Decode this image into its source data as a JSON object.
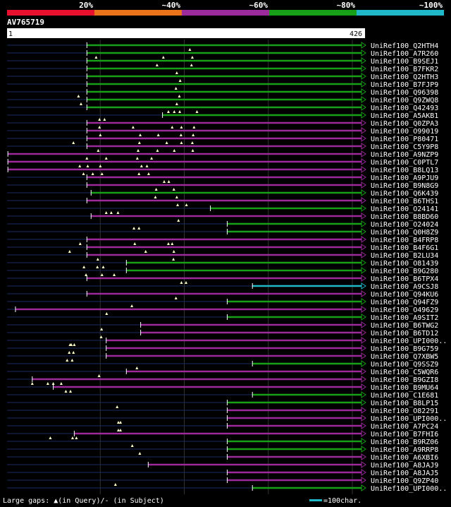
{
  "legend": {
    "segments": [
      {
        "color": "#e8112d",
        "label": "20%"
      },
      {
        "color": "#e8731a",
        "label": "~40%"
      },
      {
        "color": "#9b2a9b",
        "label": "~60%"
      },
      {
        "color": "#17a017",
        "label": "~80%"
      },
      {
        "color": "#1fb8c8",
        "label": "~100%"
      }
    ]
  },
  "query": {
    "id": "AV765719",
    "start_label": "1",
    "end_label": "426",
    "length": 426
  },
  "footer": {
    "gaps_text": "Large gaps: ▲(in Query)/- (in Subject)",
    "scale_text": "=100char.",
    "scale_color": "#1fb8c8"
  },
  "hits": [
    {
      "label": "UniRef100_Q2HTH4",
      "color": "#17a017",
      "start": 95,
      "end": 426,
      "arrow": true,
      "lead": 93,
      "marks": [
        435
      ]
    },
    {
      "label": "UniRef100_A7R260",
      "color": "#17a017",
      "start": 95,
      "end": 426,
      "arrow": true,
      "lead": 93,
      "marks": [
        212,
        372,
        441
      ]
    },
    {
      "label": "UniRef100_B9SEJ1",
      "color": "#17a017",
      "start": 95,
      "end": 426,
      "arrow": true,
      "lead": 93,
      "marks": [
        357,
        439
      ]
    },
    {
      "label": "UniRef100_B7FKR2",
      "color": "#17a017",
      "start": 95,
      "end": 426,
      "arrow": true,
      "lead": 93,
      "marks": [
        404
      ]
    },
    {
      "label": "UniRef100_Q2HTH3",
      "color": "#17a017",
      "start": 95,
      "end": 426,
      "arrow": true,
      "lead": 93,
      "marks": [
        412
      ]
    },
    {
      "label": "UniRef100_B7FJP9",
      "color": "#17a017",
      "start": 95,
      "end": 426,
      "arrow": true,
      "lead": 93,
      "marks": [
        402
      ]
    },
    {
      "label": "UniRef100_Q96398",
      "color": "#17a017",
      "start": 95,
      "end": 426,
      "arrow": true,
      "lead": 93,
      "marks": [
        170,
        410
      ]
    },
    {
      "label": "UniRef100_Q9ZWQ8",
      "color": "#17a017",
      "start": 95,
      "end": 426,
      "arrow": true,
      "lead": 93,
      "marks": [
        176,
        404
      ]
    },
    {
      "label": "UniRef100_Q42493",
      "color": "#17a017",
      "start": 95,
      "end": 426,
      "arrow": true,
      "lead": 93,
      "marks": [
        384,
        398,
        411,
        452
      ]
    },
    {
      "label": "UniRef100_A5AKB1",
      "color": "#17a017",
      "start": 185,
      "end": 426,
      "arrow": true,
      "lead": 185,
      "marks": [
        220,
        232
      ]
    },
    {
      "label": "UniRef100_Q0ZPA3",
      "color": "#9b2a9b",
      "start": 95,
      "end": 426,
      "arrow": true,
      "lead": 93,
      "marks": [
        220,
        300,
        393,
        415,
        445
      ]
    },
    {
      "label": "UniRef100_O99019",
      "color": "#9b2a9b",
      "start": 95,
      "end": 426,
      "arrow": true,
      "lead": 93,
      "marks": [
        222,
        317,
        360,
        414,
        443
      ]
    },
    {
      "label": "UniRef100_P80471",
      "color": "#9b2a9b",
      "start": 95,
      "end": 426,
      "arrow": true,
      "lead": 93,
      "marks": [
        158,
        315,
        380,
        415,
        441
      ]
    },
    {
      "label": "UniRef100_C5Y9P8",
      "color": "#9b2a9b",
      "start": 95,
      "end": 426,
      "arrow": true,
      "lead": 93,
      "marks": [
        217,
        312,
        358,
        398,
        442
      ]
    },
    {
      "label": "UniRef100_A9NZP9",
      "color": "#9b2a9b",
      "start": 1,
      "end": 426,
      "arrow": true,
      "lead": 0,
      "marks": [
        190,
        236,
        310,
        344
      ]
    },
    {
      "label": "UniRef100_C0PTL7",
      "color": "#9b2a9b",
      "start": 1,
      "end": 426,
      "arrow": true,
      "lead": 0,
      "marks": [
        173,
        192,
        222,
        320,
        333
      ]
    },
    {
      "label": "UniRef100_B8LQ13",
      "color": "#9b2a9b",
      "start": 1,
      "end": 426,
      "arrow": true,
      "lead": 0,
      "marks": [
        182,
        204,
        226,
        314,
        337
      ]
    },
    {
      "label": "UniRef100_A9PJU9",
      "color": "#9b2a9b",
      "start": 95,
      "end": 426,
      "arrow": true,
      "lead": 93,
      "marks": [
        374,
        385
      ]
    },
    {
      "label": "UniRef100_B9N8G9",
      "color": "#9b2a9b",
      "start": 95,
      "end": 426,
      "arrow": true,
      "lead": 93,
      "marks": [
        355,
        397
      ]
    },
    {
      "label": "UniRef100_Q6K439",
      "color": "#17a017",
      "start": 100,
      "end": 426,
      "arrow": true,
      "lead": 93,
      "marks": [
        353,
        404
      ]
    },
    {
      "label": "UniRef100_B6THS1",
      "color": "#9b2a9b",
      "start": 95,
      "end": 426,
      "arrow": true,
      "lead": 93,
      "marks": [
        406,
        427
      ]
    },
    {
      "label": "UniRef100_O24141",
      "color": "#17a017",
      "start": 242,
      "end": 426,
      "arrow": true,
      "lead": 242,
      "marks": [
        236,
        248,
        264
      ]
    },
    {
      "label": "UniRef100_B8BD60",
      "color": "#9b2a9b",
      "start": 100,
      "end": 426,
      "arrow": true,
      "lead": 93,
      "marks": [
        408
      ]
    },
    {
      "label": "UniRef100_O24024",
      "color": "#17a017",
      "start": 262,
      "end": 426,
      "arrow": true,
      "lead": 262,
      "marks": [
        302,
        314
      ]
    },
    {
      "label": "UniRef100_Q0H8Z9",
      "color": "#17a017",
      "start": 262,
      "end": 426,
      "arrow": true,
      "lead": 262,
      "marks": []
    },
    {
      "label": "UniRef100_B4FRP8",
      "color": "#9b2a9b",
      "start": 95,
      "end": 426,
      "arrow": true,
      "lead": 93,
      "marks": [
        174,
        304,
        384,
        393
      ]
    },
    {
      "label": "UniRef100_B4F6G1",
      "color": "#9b2a9b",
      "start": 95,
      "end": 426,
      "arrow": true,
      "lead": 93,
      "marks": [
        149,
        330,
        397
      ]
    },
    {
      "label": "UniRef100_B2LU34",
      "color": "#9b2a9b",
      "start": 95,
      "end": 426,
      "arrow": true,
      "lead": 93,
      "marks": [
        216,
        396
      ]
    },
    {
      "label": "UniRef100_O81439",
      "color": "#17a017",
      "start": 142,
      "end": 426,
      "arrow": true,
      "lead": 95,
      "marks": [
        183,
        215,
        229
      ]
    },
    {
      "label": "UniRef100_B9G280",
      "color": "#17a017",
      "start": 142,
      "end": 426,
      "arrow": true,
      "lead": 100,
      "marks": [
        188,
        226,
        255
      ]
    },
    {
      "label": "UniRef100_B6TPX4",
      "color": "#9b2a9b",
      "start": 95,
      "end": 426,
      "arrow": true,
      "lead": 93,
      "marks": [
        415,
        426
      ]
    },
    {
      "label": "UniRef100_A9CSJ8",
      "color": "#1fb8c8",
      "start": 292,
      "end": 426,
      "arrow": true,
      "lead": 292,
      "marks": []
    },
    {
      "label": "UniRef100_Q94KU6",
      "color": "#9b2a9b",
      "start": 95,
      "end": 426,
      "arrow": true,
      "lead": 93,
      "marks": [
        402
      ]
    },
    {
      "label": "UniRef100_Q94FZ9",
      "color": "#17a017",
      "start": 262,
      "end": 426,
      "arrow": true,
      "lead": 262,
      "marks": [
        297
      ]
    },
    {
      "label": "UniRef100_O49629",
      "color": "#9b2a9b",
      "start": 10,
      "end": 426,
      "arrow": true,
      "lead": 10,
      "marks": [
        237
      ]
    },
    {
      "label": "UniRef100_A9SIT2",
      "color": "#17a017",
      "start": 262,
      "end": 426,
      "arrow": true,
      "lead": 262,
      "marks": []
    },
    {
      "label": "UniRef100_B6TWG2",
      "color": "#9b2a9b",
      "start": 159,
      "end": 426,
      "arrow": true,
      "lead": 95,
      "marks": [
        225
      ]
    },
    {
      "label": "UniRef100_B6TD12",
      "color": "#9b2a9b",
      "start": 159,
      "end": 426,
      "arrow": true,
      "lead": 95,
      "marks": [
        224
      ]
    },
    {
      "label": "UniRef100_UPI000..",
      "color": "#9b2a9b",
      "start": 118,
      "end": 426,
      "arrow": true,
      "lead": 95,
      "marks": [
        150,
        153,
        160
      ]
    },
    {
      "label": "UniRef100_B9G759",
      "color": "#9b2a9b",
      "start": 118,
      "end": 426,
      "arrow": true,
      "lead": 95,
      "marks": [
        148,
        158
      ]
    },
    {
      "label": "UniRef100_Q7XBW5",
      "color": "#9b2a9b",
      "start": 118,
      "end": 426,
      "arrow": true,
      "lead": 95,
      "marks": [
        143,
        155
      ]
    },
    {
      "label": "UniRef100_Q9SSZ9",
      "color": "#17a017",
      "start": 292,
      "end": 426,
      "arrow": true,
      "lead": 292,
      "marks": [
        309
      ]
    },
    {
      "label": "UniRef100_C5WQR6",
      "color": "#9b2a9b",
      "start": 142,
      "end": 426,
      "arrow": true,
      "lead": 95,
      "marks": [
        219
      ]
    },
    {
      "label": "UniRef100_B9GZI8",
      "color": "#9b2a9b",
      "start": 30,
      "end": 426,
      "arrow": true,
      "lead": 30,
      "marks": [
        60,
        97,
        110,
        129
      ]
    },
    {
      "label": "UniRef100_B9MU64",
      "color": "#9b2a9b",
      "start": 55,
      "end": 426,
      "arrow": true,
      "lead": 55,
      "marks": [
        140,
        151
      ]
    },
    {
      "label": "UniRef100_C1E681",
      "color": "#17a017",
      "start": 292,
      "end": 426,
      "arrow": true,
      "lead": 292,
      "marks": []
    },
    {
      "label": "UniRef100_B8LP15",
      "color": "#17a017",
      "start": 262,
      "end": 426,
      "arrow": true,
      "lead": 262,
      "marks": [
        262
      ]
    },
    {
      "label": "UniRef100_O82291",
      "color": "#9b2a9b",
      "start": 262,
      "end": 426,
      "arrow": true,
      "lead": 262,
      "marks": []
    },
    {
      "label": "UniRef100_UPI000..",
      "color": "#9b2a9b",
      "start": 262,
      "end": 426,
      "arrow": true,
      "lead": 262,
      "marks": [
        265,
        270
      ]
    },
    {
      "label": "UniRef100_A7PC24",
      "color": "#9b2a9b",
      "start": 262,
      "end": 426,
      "arrow": true,
      "lead": 262,
      "marks": [
        265,
        270
      ]
    },
    {
      "label": "UniRef100_B7FHI6",
      "color": "#9b2a9b",
      "start": 80,
      "end": 426,
      "arrow": true,
      "lead": 80,
      "marks": [
        103,
        156,
        165
      ]
    },
    {
      "label": "UniRef100_B9RZ06",
      "color": "#17a017",
      "start": 262,
      "end": 426,
      "arrow": true,
      "lead": 262,
      "marks": [
        298
      ]
    },
    {
      "label": "UniRef100_A9RRP8",
      "color": "#17a017",
      "start": 262,
      "end": 426,
      "arrow": true,
      "lead": 262,
      "marks": [
        316
      ]
    },
    {
      "label": "UniRef100_A6XBI6",
      "color": "#9b2a9b",
      "start": 262,
      "end": 426,
      "arrow": true,
      "lead": 262,
      "marks": []
    },
    {
      "label": "UniRef100_A8JAJ9",
      "color": "#9b2a9b",
      "start": 168,
      "end": 426,
      "arrow": true,
      "lead": 168,
      "marks": []
    },
    {
      "label": "UniRef100_A8JAJ5",
      "color": "#9b2a9b",
      "start": 262,
      "end": 426,
      "arrow": true,
      "lead": 262,
      "marks": []
    },
    {
      "label": "UniRef100_Q9ZP40",
      "color": "#9b2a9b",
      "start": 262,
      "end": 426,
      "arrow": true,
      "lead": 262,
      "marks": [
        258
      ]
    },
    {
      "label": "UniRef100_UPI000..",
      "color": "#17a017",
      "start": 292,
      "end": 426,
      "arrow": true,
      "lead": 292,
      "marks": []
    }
  ]
}
